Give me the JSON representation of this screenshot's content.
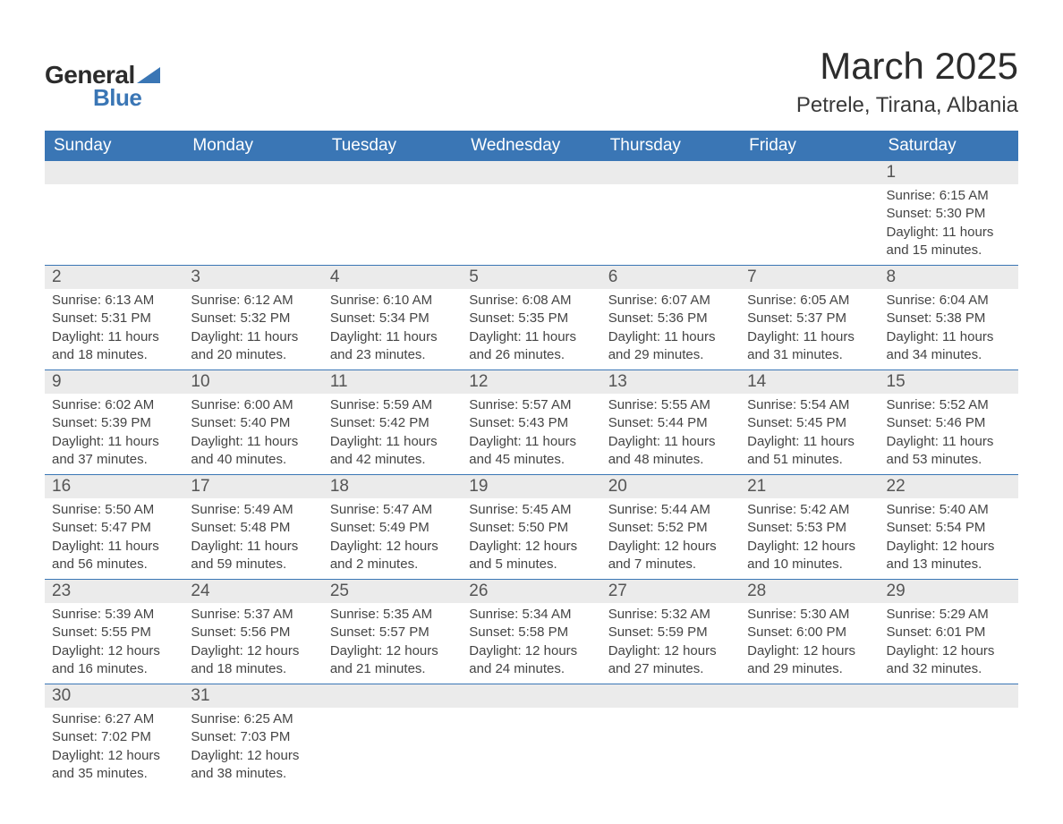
{
  "logo": {
    "general": "General",
    "blue": "Blue"
  },
  "title": "March 2025",
  "location": "Petrele, Tirana, Albania",
  "colors": {
    "header_bg": "#3a76b5",
    "header_text": "#ffffff",
    "daynum_bg": "#ebebeb",
    "daynum_text": "#555555",
    "body_text": "#444444",
    "rule": "#3a76b5",
    "page_bg": "#ffffff"
  },
  "typography": {
    "title_fontsize": 42,
    "location_fontsize": 24,
    "th_fontsize": 19,
    "daynum_fontsize": 19,
    "body_fontsize": 15,
    "font_family": "Arial"
  },
  "weekdays": [
    "Sunday",
    "Monday",
    "Tuesday",
    "Wednesday",
    "Thursday",
    "Friday",
    "Saturday"
  ],
  "weeks": [
    [
      null,
      null,
      null,
      null,
      null,
      null,
      {
        "n": "1",
        "sunrise": "6:15 AM",
        "sunset": "5:30 PM",
        "daylight": "11 hours and 15 minutes."
      }
    ],
    [
      {
        "n": "2",
        "sunrise": "6:13 AM",
        "sunset": "5:31 PM",
        "daylight": "11 hours and 18 minutes."
      },
      {
        "n": "3",
        "sunrise": "6:12 AM",
        "sunset": "5:32 PM",
        "daylight": "11 hours and 20 minutes."
      },
      {
        "n": "4",
        "sunrise": "6:10 AM",
        "sunset": "5:34 PM",
        "daylight": "11 hours and 23 minutes."
      },
      {
        "n": "5",
        "sunrise": "6:08 AM",
        "sunset": "5:35 PM",
        "daylight": "11 hours and 26 minutes."
      },
      {
        "n": "6",
        "sunrise": "6:07 AM",
        "sunset": "5:36 PM",
        "daylight": "11 hours and 29 minutes."
      },
      {
        "n": "7",
        "sunrise": "6:05 AM",
        "sunset": "5:37 PM",
        "daylight": "11 hours and 31 minutes."
      },
      {
        "n": "8",
        "sunrise": "6:04 AM",
        "sunset": "5:38 PM",
        "daylight": "11 hours and 34 minutes."
      }
    ],
    [
      {
        "n": "9",
        "sunrise": "6:02 AM",
        "sunset": "5:39 PM",
        "daylight": "11 hours and 37 minutes."
      },
      {
        "n": "10",
        "sunrise": "6:00 AM",
        "sunset": "5:40 PM",
        "daylight": "11 hours and 40 minutes."
      },
      {
        "n": "11",
        "sunrise": "5:59 AM",
        "sunset": "5:42 PM",
        "daylight": "11 hours and 42 minutes."
      },
      {
        "n": "12",
        "sunrise": "5:57 AM",
        "sunset": "5:43 PM",
        "daylight": "11 hours and 45 minutes."
      },
      {
        "n": "13",
        "sunrise": "5:55 AM",
        "sunset": "5:44 PM",
        "daylight": "11 hours and 48 minutes."
      },
      {
        "n": "14",
        "sunrise": "5:54 AM",
        "sunset": "5:45 PM",
        "daylight": "11 hours and 51 minutes."
      },
      {
        "n": "15",
        "sunrise": "5:52 AM",
        "sunset": "5:46 PM",
        "daylight": "11 hours and 53 minutes."
      }
    ],
    [
      {
        "n": "16",
        "sunrise": "5:50 AM",
        "sunset": "5:47 PM",
        "daylight": "11 hours and 56 minutes."
      },
      {
        "n": "17",
        "sunrise": "5:49 AM",
        "sunset": "5:48 PM",
        "daylight": "11 hours and 59 minutes."
      },
      {
        "n": "18",
        "sunrise": "5:47 AM",
        "sunset": "5:49 PM",
        "daylight": "12 hours and 2 minutes."
      },
      {
        "n": "19",
        "sunrise": "5:45 AM",
        "sunset": "5:50 PM",
        "daylight": "12 hours and 5 minutes."
      },
      {
        "n": "20",
        "sunrise": "5:44 AM",
        "sunset": "5:52 PM",
        "daylight": "12 hours and 7 minutes."
      },
      {
        "n": "21",
        "sunrise": "5:42 AM",
        "sunset": "5:53 PM",
        "daylight": "12 hours and 10 minutes."
      },
      {
        "n": "22",
        "sunrise": "5:40 AM",
        "sunset": "5:54 PM",
        "daylight": "12 hours and 13 minutes."
      }
    ],
    [
      {
        "n": "23",
        "sunrise": "5:39 AM",
        "sunset": "5:55 PM",
        "daylight": "12 hours and 16 minutes."
      },
      {
        "n": "24",
        "sunrise": "5:37 AM",
        "sunset": "5:56 PM",
        "daylight": "12 hours and 18 minutes."
      },
      {
        "n": "25",
        "sunrise": "5:35 AM",
        "sunset": "5:57 PM",
        "daylight": "12 hours and 21 minutes."
      },
      {
        "n": "26",
        "sunrise": "5:34 AM",
        "sunset": "5:58 PM",
        "daylight": "12 hours and 24 minutes."
      },
      {
        "n": "27",
        "sunrise": "5:32 AM",
        "sunset": "5:59 PM",
        "daylight": "12 hours and 27 minutes."
      },
      {
        "n": "28",
        "sunrise": "5:30 AM",
        "sunset": "6:00 PM",
        "daylight": "12 hours and 29 minutes."
      },
      {
        "n": "29",
        "sunrise": "5:29 AM",
        "sunset": "6:01 PM",
        "daylight": "12 hours and 32 minutes."
      }
    ],
    [
      {
        "n": "30",
        "sunrise": "6:27 AM",
        "sunset": "7:02 PM",
        "daylight": "12 hours and 35 minutes."
      },
      {
        "n": "31",
        "sunrise": "6:25 AM",
        "sunset": "7:03 PM",
        "daylight": "12 hours and 38 minutes."
      },
      null,
      null,
      null,
      null,
      null
    ]
  ],
  "labels": {
    "sunrise": "Sunrise:",
    "sunset": "Sunset:",
    "daylight": "Daylight:"
  }
}
